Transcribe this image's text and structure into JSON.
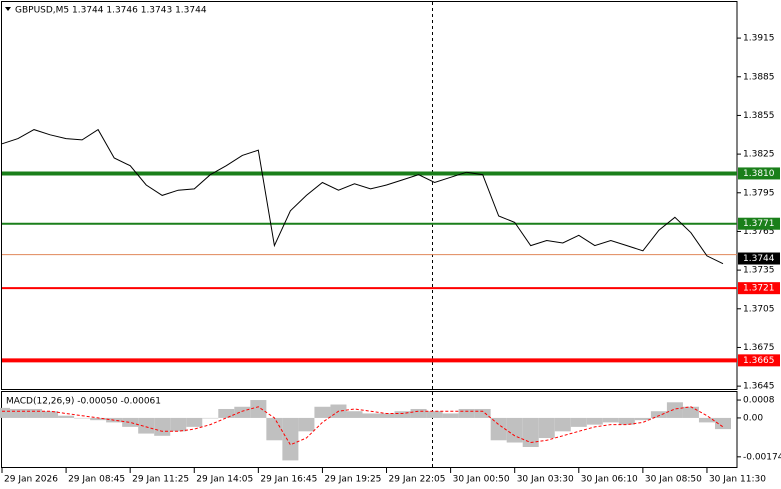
{
  "chart_data": [
    {
      "type": "line",
      "title": "GBPUSD,M5  1.3744 1.3746 1.3743 1.3744",
      "x": [
        0,
        8,
        16,
        24,
        32,
        40,
        48,
        56,
        64,
        72,
        80,
        88,
        96,
        104,
        112,
        120,
        128,
        136,
        144,
        152,
        160,
        168,
        176,
        184,
        192,
        200,
        208,
        216,
        224,
        232,
        240,
        248,
        256,
        264,
        272,
        280,
        288,
        296,
        304,
        312,
        320,
        328,
        336,
        344,
        352,
        360
      ],
      "xlim": [
        0,
        367
      ],
      "xticks": [
        {
          "value": 0,
          "label": "29 Jan 2026"
        },
        {
          "value": 32,
          "label": "29 Jan 08:45"
        },
        {
          "value": 64,
          "label": "29 Jan 11:25"
        },
        {
          "value": 96,
          "label": "29 Jan 14:05"
        },
        {
          "value": 128,
          "label": "29 Jan 16:45"
        },
        {
          "value": 160,
          "label": "29 Jan 19:25"
        },
        {
          "value": 192,
          "label": "29 Jan 22:05"
        },
        {
          "value": 224,
          "label": "30 Jan 00:50"
        },
        {
          "value": 256,
          "label": "30 Jan 03:30"
        },
        {
          "value": 288,
          "label": "30 Jan 06:10"
        },
        {
          "value": 320,
          "label": "30 Jan 08:50"
        },
        {
          "value": 352,
          "label": "30 Jan 11:30"
        }
      ],
      "series": [
        {
          "color": "#000000",
          "values": [
            1.3833,
            1.3837,
            1.3844,
            1.384,
            1.3837,
            1.3836,
            1.3844,
            1.3822,
            1.3816,
            1.3801,
            1.3793,
            1.3797,
            1.3798,
            1.3809,
            1.3816,
            1.3824,
            1.3828,
            1.3754,
            1.3781,
            1.3793,
            1.3803,
            1.3797,
            1.3802,
            1.3798,
            1.3801,
            1.3805,
            1.3809,
            1.3803,
            1.3807,
            1.3811,
            1.3809,
            1.3777,
            1.3772,
            1.3754,
            1.3758,
            1.3756,
            1.3762,
            1.3754,
            1.3758,
            1.3754,
            1.375,
            1.3766,
            1.3776,
            1.3764,
            1.3746,
            1.374
          ]
        }
      ],
      "ylim": [
        1.3642,
        1.3943
      ],
      "yticks": [
        1.3915,
        1.3885,
        1.3855,
        1.3825,
        1.3795,
        1.3765,
        1.3735,
        1.3705,
        1.3675,
        1.3645
      ],
      "levels": [
        {
          "value": 1.381,
          "label": "1.3810",
          "color": "#1a7f1a",
          "width": 4
        },
        {
          "value": 1.3771,
          "label": "1.3771",
          "color": "#1a7f1a",
          "width": 2
        },
        {
          "value": 1.3721,
          "label": "1.3721",
          "color": "#ff0000",
          "width": 2
        },
        {
          "value": 1.3665,
          "label": "1.3665",
          "color": "#ff0000",
          "width": 4
        }
      ],
      "ask_line": {
        "value": 1.3747,
        "color": "#e0875a"
      },
      "current_price": {
        "value": 1.3744,
        "color": "#000000"
      }
    },
    {
      "type": "macd",
      "title": "MACD(12,26,9) -0.00050 -0.00061",
      "x": [
        0,
        8,
        16,
        24,
        32,
        40,
        48,
        56,
        64,
        72,
        80,
        88,
        96,
        104,
        112,
        120,
        128,
        136,
        144,
        152,
        160,
        168,
        176,
        184,
        192,
        200,
        208,
        216,
        224,
        232,
        240,
        248,
        256,
        264,
        272,
        280,
        288,
        296,
        304,
        312,
        320,
        328,
        336,
        344,
        352,
        360
      ],
      "xlim": [
        0,
        367
      ],
      "ylim": [
        -0.00224,
        0.00116
      ],
      "yticks": [
        0.0008,
        {
          "value": 0,
          "label": "0.00"
        },
        -0.00174
      ],
      "series": [
        {
          "name": "MACD",
          "color": "#c0c0c0",
          "values": [
            0.00045,
            0.0004,
            0.0004,
            0.0003,
            0.0001,
            0,
            -0.0001,
            -0.0002,
            -0.0004,
            -0.0007,
            -0.0008,
            -0.0006,
            -0.0004,
            0,
            0.0004,
            0.0005,
            0.0008,
            -0.001,
            -0.0019,
            -0.0006,
            0.0005,
            0.0006,
            0.0003,
            0.0002,
            0.0002,
            0.0003,
            0.0004,
            0.0003,
            0.0002,
            0.0004,
            0.0004,
            -0.001,
            -0.0011,
            -0.0013,
            -0.0009,
            -0.0006,
            -0.0004,
            -0.0003,
            -0.0002,
            -0.0003,
            -0.0001,
            0.0003,
            0.0007,
            0.0005,
            -0.0002,
            -0.0005
          ]
        },
        {
          "name": "Signal",
          "color": "#ff0000",
          "values": [
            0.0003,
            0.0003,
            0.0003,
            0.0003,
            0.0002,
            0.0001,
            0,
            -0.0001,
            -0.0002,
            -0.0004,
            -0.0006,
            -0.0006,
            -0.0005,
            -0.0003,
            0,
            0.0003,
            0.0005,
            0,
            -0.0012,
            -0.0009,
            -0.0002,
            0.0003,
            0.0004,
            0.0003,
            0.0002,
            0.0002,
            0.0003,
            0.0003,
            0.0003,
            0.0003,
            0.0003,
            -0.0003,
            -0.0008,
            -0.0011,
            -0.001,
            -0.0008,
            -0.0006,
            -0.0004,
            -0.0003,
            -0.0003,
            -0.0002,
            0.0001,
            0.0004,
            0.0005,
            0.0001,
            -0.0004
          ]
        }
      ]
    }
  ]
}
